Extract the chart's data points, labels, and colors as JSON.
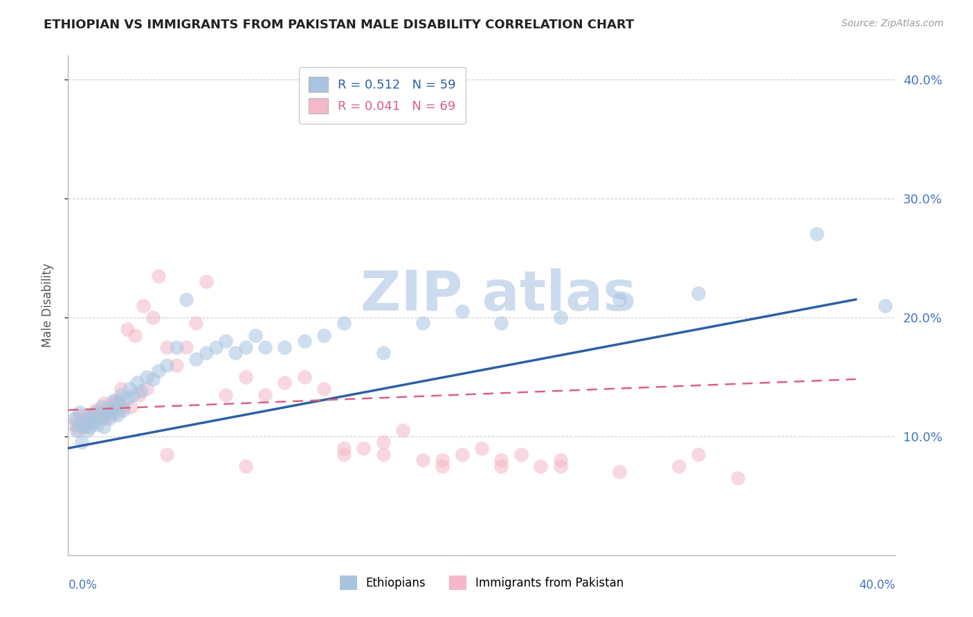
{
  "title": "ETHIOPIAN VS IMMIGRANTS FROM PAKISTAN MALE DISABILITY CORRELATION CHART",
  "source": "Source: ZipAtlas.com",
  "ylabel": "Male Disability",
  "ylim": [
    0.0,
    0.42
  ],
  "xlim": [
    0.0,
    0.42
  ],
  "yticks": [
    0.1,
    0.2,
    0.3,
    0.4
  ],
  "ytick_labels": [
    "10.0%",
    "20.0%",
    "30.0%",
    "40.0%"
  ],
  "legend_r1": "R = 0.512",
  "legend_n1": "N = 59",
  "legend_r2": "R = 0.041",
  "legend_n2": "N = 69",
  "color_ethiopian": "#a8c4e0",
  "color_pakistan": "#f4b8c8",
  "line_color_ethiopian": "#2e5fa3",
  "line_color_pakistan": "#d96080",
  "watermark_color": "#c8d8ee",
  "eth_line_x0": 0.0,
  "eth_line_y0": 0.09,
  "eth_line_x1": 0.4,
  "eth_line_y1": 0.215,
  "pak_line_x0": 0.0,
  "pak_line_y0": 0.122,
  "pak_line_x1": 0.4,
  "pak_line_y1": 0.148,
  "ethiopians_x": [
    0.003,
    0.004,
    0.005,
    0.006,
    0.007,
    0.008,
    0.009,
    0.01,
    0.01,
    0.011,
    0.012,
    0.013,
    0.014,
    0.015,
    0.016,
    0.017,
    0.018,
    0.019,
    0.02,
    0.021,
    0.022,
    0.023,
    0.024,
    0.025,
    0.026,
    0.027,
    0.028,
    0.03,
    0.031,
    0.033,
    0.035,
    0.037,
    0.04,
    0.043,
    0.046,
    0.05,
    0.055,
    0.06,
    0.065,
    0.07,
    0.075,
    0.08,
    0.085,
    0.09,
    0.095,
    0.1,
    0.11,
    0.12,
    0.13,
    0.14,
    0.16,
    0.18,
    0.2,
    0.22,
    0.25,
    0.28,
    0.32,
    0.38,
    0.415
  ],
  "ethiopians_y": [
    0.115,
    0.105,
    0.11,
    0.12,
    0.095,
    0.108,
    0.112,
    0.105,
    0.115,
    0.108,
    0.118,
    0.112,
    0.12,
    0.11,
    0.115,
    0.125,
    0.108,
    0.118,
    0.122,
    0.115,
    0.12,
    0.13,
    0.125,
    0.118,
    0.128,
    0.135,
    0.122,
    0.132,
    0.14,
    0.135,
    0.145,
    0.138,
    0.15,
    0.148,
    0.155,
    0.16,
    0.175,
    0.215,
    0.165,
    0.17,
    0.175,
    0.18,
    0.17,
    0.175,
    0.185,
    0.175,
    0.175,
    0.18,
    0.185,
    0.195,
    0.17,
    0.195,
    0.205,
    0.195,
    0.2,
    0.215,
    0.22,
    0.27,
    0.21
  ],
  "pakistan_x": [
    0.003,
    0.004,
    0.005,
    0.006,
    0.007,
    0.008,
    0.009,
    0.01,
    0.01,
    0.011,
    0.012,
    0.013,
    0.014,
    0.015,
    0.016,
    0.017,
    0.018,
    0.019,
    0.02,
    0.021,
    0.022,
    0.023,
    0.024,
    0.025,
    0.026,
    0.027,
    0.028,
    0.03,
    0.032,
    0.034,
    0.036,
    0.038,
    0.04,
    0.043,
    0.046,
    0.05,
    0.055,
    0.06,
    0.065,
    0.07,
    0.08,
    0.09,
    0.1,
    0.11,
    0.12,
    0.13,
    0.14,
    0.15,
    0.16,
    0.17,
    0.18,
    0.19,
    0.2,
    0.21,
    0.22,
    0.23,
    0.24,
    0.25,
    0.28,
    0.31,
    0.34,
    0.05,
    0.09,
    0.14,
    0.22,
    0.32,
    0.16,
    0.19,
    0.25
  ],
  "pakistan_y": [
    0.11,
    0.115,
    0.105,
    0.115,
    0.108,
    0.118,
    0.112,
    0.118,
    0.108,
    0.115,
    0.112,
    0.118,
    0.122,
    0.115,
    0.12,
    0.118,
    0.128,
    0.115,
    0.125,
    0.12,
    0.118,
    0.128,
    0.13,
    0.12,
    0.13,
    0.14,
    0.125,
    0.19,
    0.125,
    0.185,
    0.135,
    0.21,
    0.14,
    0.2,
    0.235,
    0.175,
    0.16,
    0.175,
    0.195,
    0.23,
    0.135,
    0.15,
    0.135,
    0.145,
    0.15,
    0.14,
    0.085,
    0.09,
    0.095,
    0.105,
    0.08,
    0.075,
    0.085,
    0.09,
    0.075,
    0.085,
    0.075,
    0.08,
    0.07,
    0.075,
    0.065,
    0.085,
    0.075,
    0.09,
    0.08,
    0.085,
    0.085,
    0.08,
    0.075
  ]
}
